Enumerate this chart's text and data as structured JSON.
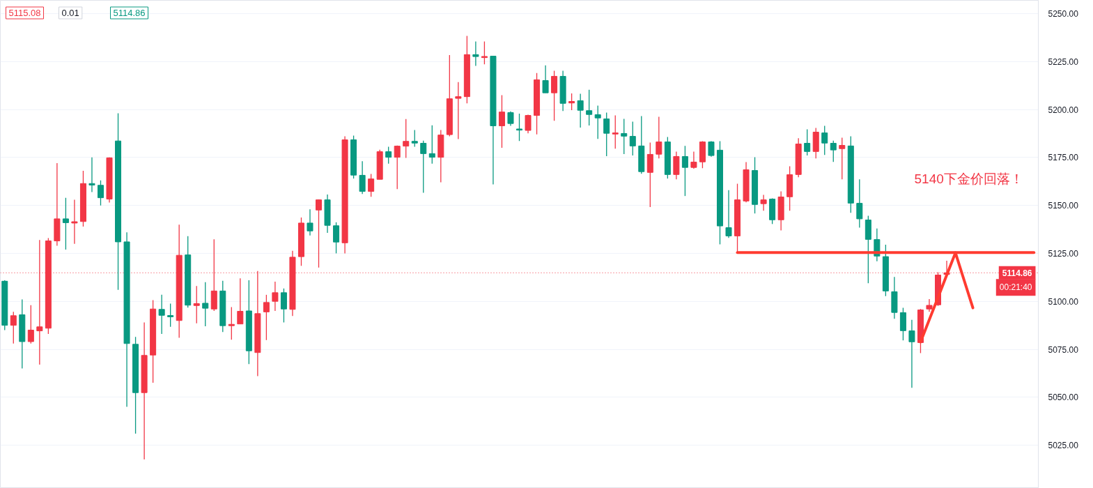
{
  "chart_data": {
    "type": "candlestick",
    "categories": [
      null,
      null,
      null,
      null,
      null,
      null,
      null,
      null,
      null,
      null,
      null,
      null,
      null,
      null,
      null,
      null,
      null,
      null,
      null,
      null,
      null,
      null,
      null,
      null,
      null,
      null,
      null,
      null,
      null,
      null,
      null,
      null,
      null,
      null,
      null,
      null,
      null,
      null,
      null,
      null,
      null,
      null,
      null,
      null,
      null,
      null,
      null,
      null,
      null,
      null,
      null,
      null,
      null,
      null,
      null,
      null,
      null,
      null,
      null,
      null,
      null,
      null,
      null,
      null,
      null,
      null,
      null,
      null,
      null,
      null,
      null,
      null,
      null,
      null,
      null,
      null,
      null,
      null,
      null,
      null,
      null,
      null,
      null,
      null,
      null,
      null,
      null,
      null,
      null,
      null,
      null,
      null,
      null,
      null,
      null,
      null,
      null,
      null,
      null,
      null,
      null,
      null,
      null,
      null,
      null,
      null,
      null,
      null,
      null,
      null,
      null,
      null,
      null,
      null,
      null,
      null,
      null,
      null,
      null
    ],
    "ohlc": [
      [
        5110.5,
        5111,
        5085,
        5087.5
      ],
      [
        5087.5,
        5094.5,
        5078,
        5092.5
      ],
      [
        5093,
        5101,
        5065,
        5079
      ],
      [
        5079,
        5098,
        5078,
        5085
      ],
      [
        5084.6,
        5132,
        5067,
        5086.7
      ],
      [
        5086,
        5133,
        5083,
        5131.5
      ],
      [
        5131.5,
        5172,
        5129,
        5143
      ],
      [
        5143,
        5154,
        5127,
        5141
      ],
      [
        5140.8,
        5153,
        5130,
        5141.5
      ],
      [
        5141.6,
        5168,
        5139,
        5161.4
      ],
      [
        5161.4,
        5175,
        5157,
        5160.6
      ],
      [
        5160.5,
        5163,
        5150,
        5154
      ],
      [
        5153.3,
        5175,
        5151.5,
        5174.8
      ],
      [
        5183.6,
        5198,
        5106,
        5131
      ],
      [
        5131,
        5136,
        5045,
        5078
      ],
      [
        5077.6,
        5081.5,
        5031,
        5052.4
      ],
      [
        5052.4,
        5089,
        5017.6,
        5071.8
      ],
      [
        5072,
        5100.6,
        5057.6,
        5096
      ],
      [
        5095.8,
        5103.4,
        5083,
        5092.7
      ],
      [
        5092.6,
        5098.8,
        5086.7,
        5091.9
      ],
      [
        5090,
        5140,
        5081,
        5124
      ],
      [
        5124.2,
        5134,
        5096.7,
        5098
      ],
      [
        5097.8,
        5108,
        5088.5,
        5098.8
      ],
      [
        5099,
        5110,
        5087,
        5096.4
      ],
      [
        5096,
        5132.3,
        5095,
        5105.4
      ],
      [
        5105.4,
        5110.7,
        5084,
        5087.3
      ],
      [
        5087.3,
        5097,
        5080,
        5088
      ],
      [
        5088.2,
        5112,
        5088.2,
        5094.8
      ],
      [
        5095,
        5111,
        5067.3,
        5074.2
      ],
      [
        5073.3,
        5115.8,
        5061,
        5093.6
      ],
      [
        5094.5,
        5103.4,
        5079.8,
        5099.4
      ],
      [
        5100,
        5110.3,
        5095,
        5104.5
      ],
      [
        5104.5,
        5106.7,
        5089,
        5096
      ],
      [
        5095.8,
        5126.3,
        5092.4,
        5123
      ],
      [
        5123.3,
        5143.7,
        5118.5,
        5140.8
      ],
      [
        5140.8,
        5148,
        5134.3,
        5136.7
      ],
      [
        5147.6,
        5153,
        5117.6,
        5152.9
      ],
      [
        5152.9,
        5155.7,
        5135.7,
        5139.6
      ],
      [
        5139.4,
        5141.2,
        5125,
        5130.9
      ],
      [
        5130.5,
        5186,
        5125,
        5184.2
      ],
      [
        5184.2,
        5186.4,
        5164,
        5165.8
      ],
      [
        5165.7,
        5173,
        5156,
        5157.3
      ],
      [
        5157.3,
        5166.4,
        5154.5,
        5163.8
      ],
      [
        5163.6,
        5179,
        5163.6,
        5178
      ],
      [
        5178,
        5180.6,
        5171.8,
        5175.1
      ],
      [
        5175.1,
        5181.2,
        5158.5,
        5180.9
      ],
      [
        5180.9,
        5195,
        5174.8,
        5183.4
      ],
      [
        5183.4,
        5189.3,
        5180.6,
        5182.5
      ],
      [
        5182.4,
        5183.8,
        5156.6,
        5177
      ],
      [
        5177,
        5191.8,
        5171.8,
        5175.1
      ],
      [
        5175.1,
        5189.3,
        5162,
        5186.7
      ],
      [
        5186.9,
        5228.4,
        5186,
        5205.6
      ],
      [
        5205.8,
        5214.3,
        5184.6,
        5206.7
      ],
      [
        5206.7,
        5238.4,
        5203.2,
        5228.6
      ],
      [
        5228.6,
        5235.5,
        5222.7,
        5227.6
      ],
      [
        5227.2,
        5235.5,
        5223.6,
        5227.5
      ],
      [
        5227.8,
        5227.8,
        5161,
        5191.5
      ],
      [
        5191.5,
        5207.5,
        5180,
        5198.7
      ],
      [
        5198.4,
        5199,
        5191.5,
        5192.7
      ],
      [
        5189.8,
        5197.8,
        5183.6,
        5189.3
      ],
      [
        5189.1,
        5197.3,
        5187.6,
        5196.9
      ],
      [
        5196.9,
        5219,
        5187,
        5215.5
      ],
      [
        5215.1,
        5223,
        5208.7,
        5208.7
      ],
      [
        5208.7,
        5220.2,
        5194.1,
        5217.3
      ],
      [
        5217.3,
        5220.2,
        5199.2,
        5203.2
      ],
      [
        5203.4,
        5208.4,
        5199.7,
        5204.2
      ],
      [
        5204.6,
        5208.2,
        5190.6,
        5199.6
      ],
      [
        5199.4,
        5210.3,
        5191.7,
        5197.4
      ],
      [
        5197.3,
        5202,
        5184.7,
        5195.6
      ],
      [
        5195.1,
        5198.4,
        5175.7,
        5187.6
      ],
      [
        5187.3,
        5196.9,
        5179.6,
        5187.7
      ],
      [
        5187.5,
        5195.1,
        5176.8,
        5186.1
      ],
      [
        5186,
        5193.7,
        5176,
        5181
      ],
      [
        5181,
        5196.6,
        5166.5,
        5167.6
      ],
      [
        5167.2,
        5182.8,
        5149.1,
        5176.6
      ],
      [
        5176.7,
        5196.2,
        5174.5,
        5183.1
      ],
      [
        5183.1,
        5185.7,
        5164,
        5166.1
      ],
      [
        5166.1,
        5178,
        5163.6,
        5175.5
      ],
      [
        5175.5,
        5181,
        5154.9,
        5169.8
      ],
      [
        5169.8,
        5178,
        5169.1,
        5172.6
      ],
      [
        5172.7,
        5183.5,
        5169.4,
        5183.1
      ],
      [
        5183.1,
        5183.5,
        5175.4,
        5176
      ],
      [
        5178.8,
        5183.5,
        5129.7,
        5139.3
      ],
      [
        5138.4,
        5158,
        5133.1,
        5134.1
      ],
      [
        5134.1,
        5161.3,
        5125.4,
        5152.9
      ],
      [
        5152.3,
        5172.6,
        5151.6,
        5168.6
      ],
      [
        5168.2,
        5175.1,
        5145.8,
        5150.5
      ],
      [
        5150.9,
        5155.5,
        5147.2,
        5152.9
      ],
      [
        5153.3,
        5153.7,
        5140.3,
        5142.5
      ],
      [
        5142.5,
        5157.3,
        5137,
        5154.4
      ],
      [
        5154.5,
        5170.4,
        5147.2,
        5166
      ],
      [
        5166.1,
        5185,
        5164.7,
        5182
      ],
      [
        5182.4,
        5189.7,
        5176,
        5178.1
      ],
      [
        5178.1,
        5190.4,
        5174.5,
        5188.2
      ],
      [
        5187.8,
        5191.5,
        5176.3,
        5182.5
      ],
      [
        5182.4,
        5183.8,
        5172.7,
        5178.9
      ],
      [
        5179.6,
        5185.3,
        5163.6,
        5181.3
      ],
      [
        5181,
        5186,
        5146.1,
        5151.2
      ],
      [
        5151.1,
        5163.6,
        5138.4,
        5143
      ],
      [
        5142.4,
        5144.6,
        5109.4,
        5132.3
      ],
      [
        5132.2,
        5138,
        5120.9,
        5123.6
      ],
      [
        5123.3,
        5129.5,
        5102.7,
        5105.4
      ],
      [
        5105,
        5112.7,
        5090.9,
        5094.2
      ],
      [
        5094.1,
        5096.6,
        5079.6,
        5084.7
      ],
      [
        5084.6,
        5090.4,
        5054.9,
        5078.9
      ],
      [
        5078.5,
        5096,
        5073,
        5095.5
      ],
      [
        5096,
        5101.2,
        5094.5,
        5097.9
      ],
      [
        5098.2,
        5115.2,
        5097.6,
        5113.7
      ],
      [
        5114,
        5121.2,
        5113.7,
        5114.86
      ],
      null,
      null,
      null,
      null,
      null,
      null,
      null,
      null,
      null,
      null
    ],
    "colors": [
      "#089981",
      "#f23645",
      "#089981",
      "#f23645",
      "#f23645",
      "#f23645",
      "#f23645",
      "#089981",
      "#f23645",
      "#f23645",
      "#089981",
      "#089981",
      "#f23645",
      "#089981",
      "#089981",
      "#089981",
      "#f23645",
      "#f23645",
      "#089981",
      "#089981",
      "#f23645",
      "#089981",
      "#f23645",
      "#089981",
      "#f23645",
      "#089981",
      "#f23645",
      "#f23645",
      "#089981",
      "#f23645",
      "#f23645",
      "#f23645",
      "#089981",
      "#f23645",
      "#f23645",
      "#089981",
      "#f23645",
      "#089981",
      "#089981",
      "#f23645",
      "#089981",
      "#089981",
      "#f23645",
      "#f23645",
      "#089981",
      "#f23645",
      "#f23645",
      "#089981",
      "#089981",
      "#089981",
      "#f23645",
      "#f23645",
      "#f23645",
      "#f23645",
      "#089981",
      "#f23645",
      "#089981",
      "#f23645",
      "#089981",
      "#089981",
      "#f23645",
      "#f23645",
      "#089981",
      "#f23645",
      "#089981",
      "#f23645",
      "#089981",
      "#089981",
      "#089981",
      "#089981",
      "#f23645",
      "#089981",
      "#089981",
      "#089981",
      "#f23645",
      "#f23645",
      "#089981",
      "#f23645",
      "#089981",
      "#f23645",
      "#f23645",
      "#089981",
      "#089981",
      "#089981",
      "#f23645",
      "#f23645",
      "#089981",
      "#f23645",
      "#089981",
      "#f23645",
      "#f23645",
      "#f23645",
      "#089981",
      "#f23645",
      "#089981",
      "#089981",
      "#f23645",
      "#089981",
      "#089981",
      "#089981",
      "#089981",
      "#089981",
      "#089981",
      "#089981",
      "#089981",
      "#f23645",
      "#f23645",
      "#f23645",
      "#f23645",
      null,
      null,
      null,
      null,
      null,
      null,
      null,
      null,
      null,
      null
    ],
    "series": [
      {
        "type": "line",
        "values": [
          null,
          null,
          null,
          null,
          null,
          null,
          null,
          null,
          null,
          null,
          null,
          null,
          null,
          null,
          null,
          null,
          null,
          null,
          null,
          null,
          null,
          null,
          null,
          null,
          null,
          null,
          null,
          null,
          null,
          null,
          null,
          null,
          null,
          null,
          null,
          null,
          null,
          null,
          null,
          null,
          null,
          null,
          null,
          null,
          null,
          null,
          null,
          null,
          null,
          null,
          null,
          null,
          null,
          null,
          null,
          null,
          null,
          null,
          null,
          null,
          null,
          null,
          null,
          null,
          null,
          null,
          null,
          null,
          null,
          null,
          null,
          null,
          null,
          null,
          null,
          null,
          null,
          null,
          null,
          null,
          null,
          null,
          null,
          null,
          5125.4,
          5125.4,
          5125.4,
          5125.4,
          5125.4,
          5125.4,
          5125.4,
          5125.4,
          5125.4,
          5125.4,
          5125.4,
          5125.4,
          5125.4,
          5125.4,
          5125.4,
          5125.4,
          5125.4,
          5125.4,
          5125.4,
          5125.4,
          5125.4,
          5125.4,
          5125.4,
          5125.4,
          5125.4,
          5125.4,
          5125.4,
          5125.4,
          5125.4,
          5125.4,
          5125.4,
          5125.4,
          5125.4,
          5125.4,
          5125.4
        ],
        "color": "#ff3b30"
      },
      {
        "type": "line",
        "values": [
          null,
          null,
          null,
          null,
          null,
          null,
          null,
          null,
          null,
          null,
          null,
          null,
          null,
          null,
          null,
          null,
          null,
          null,
          null,
          null,
          null,
          null,
          null,
          null,
          null,
          null,
          null,
          null,
          null,
          null,
          null,
          null,
          null,
          null,
          null,
          null,
          null,
          null,
          null,
          null,
          null,
          null,
          null,
          null,
          null,
          null,
          null,
          null,
          null,
          null,
          null,
          null,
          null,
          null,
          null,
          null,
          null,
          null,
          null,
          null,
          null,
          null,
          null,
          null,
          null,
          null,
          null,
          null,
          null,
          null,
          null,
          null,
          null,
          null,
          null,
          null,
          null,
          null,
          null,
          null,
          null,
          null,
          null,
          null,
          null,
          null,
          null,
          null,
          null,
          null,
          null,
          null,
          null,
          null,
          null,
          null,
          null,
          null,
          null,
          null,
          null,
          null,
          null,
          null,
          null,
          5078.8,
          5090.4,
          5102.0,
          5113.7,
          5125.3,
          5110.9,
          5096.6,
          null,
          null,
          null,
          null,
          null,
          null,
          null
        ],
        "color": "#ff3b30"
      }
    ],
    "ylim": [
      5002.5,
      5256.9
    ],
    "yticks": [
      {
        "value": 5025,
        "label": "5025.00"
      },
      {
        "value": 5050,
        "label": "5050.00"
      },
      {
        "value": 5075,
        "label": "5075.00"
      },
      {
        "value": 5100,
        "label": "5100.00"
      },
      {
        "value": 5125,
        "label": "5125.00"
      },
      {
        "value": 5150,
        "label": "5150.00"
      },
      {
        "value": 5175,
        "label": "5175.00"
      },
      {
        "value": 5200,
        "label": "5200.00"
      },
      {
        "value": 5225,
        "label": "5225.00"
      },
      {
        "value": 5250,
        "label": "5250.00"
      }
    ],
    "tick_labels": "y",
    "grid": "y",
    "ref_lines": [
      {
        "axis": "y",
        "value": 5114.86,
        "label": "5114.86",
        "color": "#f23645",
        "line_style": "dotted"
      }
    ],
    "annotations": [
      "5115.08",
      "0.01",
      "5114.86",
      "00:21:40",
      "5140下金价回落！"
    ]
  }
}
